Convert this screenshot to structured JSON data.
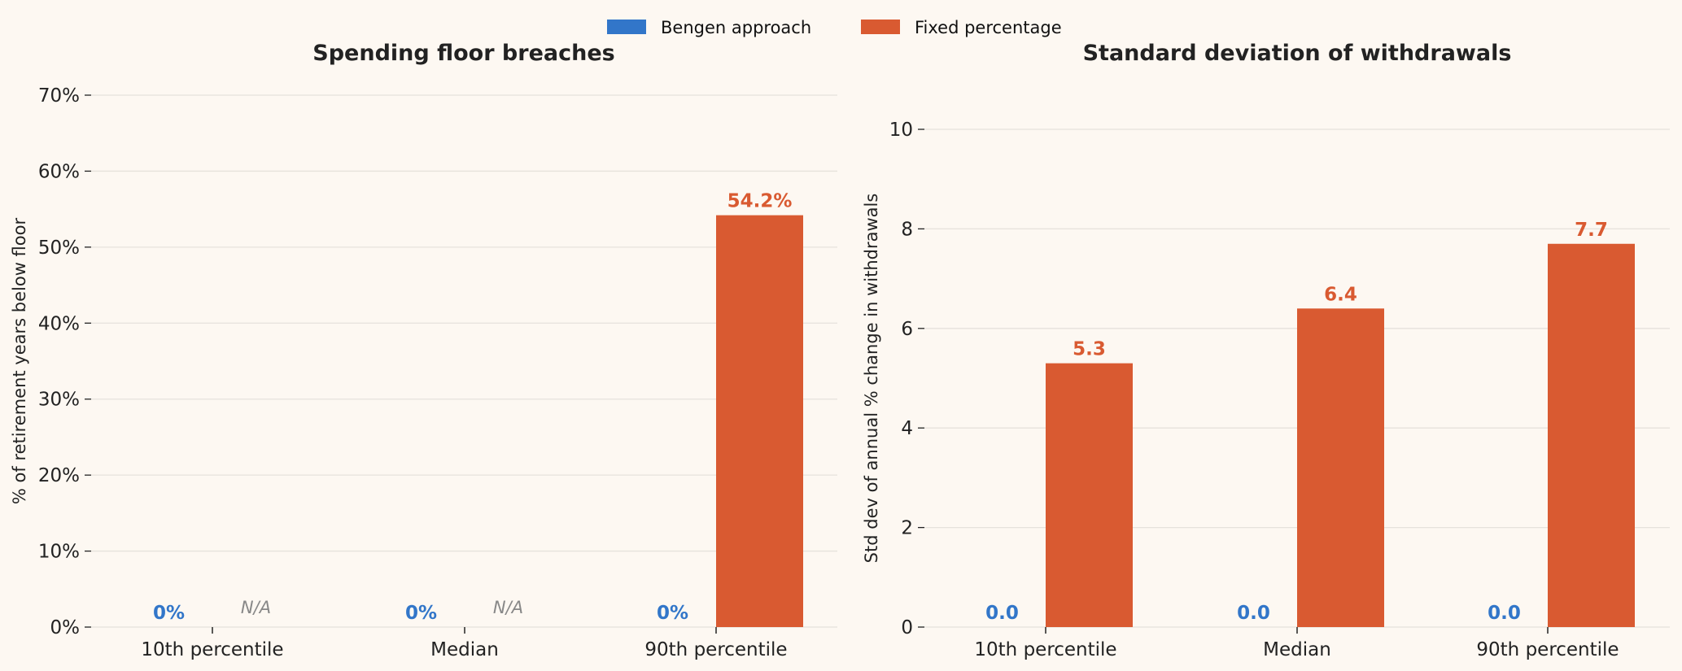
{
  "legend": {
    "placement": "top-center",
    "items": [
      {
        "label": "Bengen approach",
        "color": "#3276c9"
      },
      {
        "label": "Fixed percentage",
        "color": "#d95a31"
      }
    ]
  },
  "colors": {
    "background": "#fdf8f2",
    "grid": "#e6e2dc",
    "na_text": "#888888"
  },
  "chart_data": [
    {
      "type": "bar",
      "title": "Spending floor breaches",
      "ylabel": "% of retirement years below floor",
      "xlabel": "",
      "categories": [
        "10th percentile",
        "Median",
        "90th percentile"
      ],
      "ylim": [
        0,
        70
      ],
      "yticks": [
        0,
        10,
        20,
        30,
        40,
        50,
        60,
        70
      ],
      "ytick_labels": [
        "0%",
        "10%",
        "20%",
        "30%",
        "40%",
        "50%",
        "60%",
        "70%"
      ],
      "grid": true,
      "series": [
        {
          "name": "Bengen approach",
          "values": [
            0,
            0,
            0
          ],
          "labels": [
            "0%",
            "0%",
            "0%"
          ]
        },
        {
          "name": "Fixed percentage",
          "values": [
            null,
            null,
            54.2
          ],
          "labels": [
            "N/A",
            "N/A",
            "54.2%"
          ]
        }
      ]
    },
    {
      "type": "bar",
      "title": "Standard deviation of withdrawals",
      "ylabel": "Std dev of annual % change in withdrawals",
      "xlabel": "",
      "categories": [
        "10th percentile",
        "Median",
        "90th percentile"
      ],
      "ylim": [
        0,
        10
      ],
      "yticks": [
        0,
        2,
        4,
        6,
        8,
        10
      ],
      "ytick_labels": [
        "0",
        "2",
        "4",
        "6",
        "8",
        "10"
      ],
      "grid": true,
      "series": [
        {
          "name": "Bengen approach",
          "values": [
            0.0,
            0.0,
            0.0
          ],
          "labels": [
            "0.0",
            "0.0",
            "0.0"
          ]
        },
        {
          "name": "Fixed percentage",
          "values": [
            5.3,
            6.4,
            7.7
          ],
          "labels": [
            "5.3",
            "6.4",
            "7.7"
          ]
        }
      ]
    }
  ]
}
